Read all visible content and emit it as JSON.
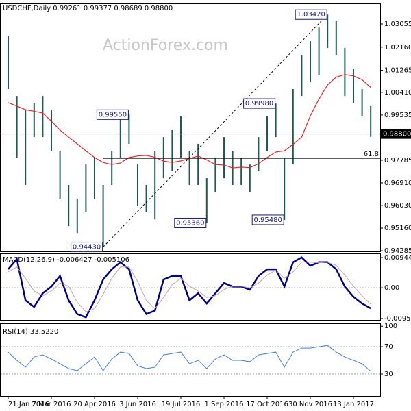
{
  "chart_data": [
    {
      "type": "hilo",
      "title": "USDCHF,Daily 0.99261 0.99377 0.98689 0.98800",
      "watermark": "ActionForex.com",
      "categories": [
        "21 Jan 2016",
        null,
        null,
        null,
        null,
        "7 Mar 2016",
        null,
        null,
        null,
        null,
        "20 Apr 2016",
        null,
        null,
        null,
        null,
        "3 Jun 2016",
        null,
        null,
        null,
        null,
        "19 Jul 2016",
        null,
        null,
        null,
        null,
        "1 Sep 2016",
        null,
        null,
        null,
        null,
        "17 Oct 2016",
        null,
        null,
        null,
        null,
        "30 Nov 2016",
        null,
        null,
        null,
        null,
        "13 Jan 2017",
        null,
        null
      ],
      "high": [
        1.026,
        1.0027,
        0.9974,
        1.0001,
        1.0027,
        0.9974,
        0.9815,
        0.9683,
        0.963,
        0.9762,
        0.9789,
        0.9683,
        0.9815,
        0.9948,
        0.9955,
        0.9762,
        0.9683,
        0.9815,
        0.9868,
        0.9895,
        0.9948,
        0.9815,
        0.9842,
        0.9709,
        0.9789,
        0.9868,
        0.9815,
        0.9789,
        0.9762,
        0.9868,
        0.9948,
        0.9998,
        0.9789,
        1.0054,
        1.0186,
        1.0239,
        1.0292,
        1.0342,
        1.0319,
        1.0213,
        1.0133,
        1.0054,
        0.9988
      ],
      "low": [
        1.0054,
        0.9789,
        0.9683,
        0.9868,
        0.9868,
        0.9815,
        0.963,
        0.9524,
        0.9497,
        0.9577,
        0.963,
        0.9443,
        0.9683,
        0.9789,
        0.9842,
        0.9603,
        0.9577,
        0.955,
        0.9709,
        0.9736,
        0.9789,
        0.9683,
        0.9683,
        0.9536,
        0.9656,
        0.9709,
        0.9683,
        0.9683,
        0.9656,
        0.9736,
        0.9815,
        0.9868,
        0.9548,
        0.9762,
        1.0027,
        1.008,
        1.0107,
        1.0213,
        1.0186,
        1.0027,
        1.0001,
        0.9948,
        0.9869
      ],
      "color": "#1e5b4f",
      "ma_values": [
        1.0001,
        0.9988,
        0.9974,
        0.9968,
        0.9961,
        0.993,
        0.9895,
        0.9868,
        0.9842,
        0.9815,
        0.9789,
        0.977,
        0.9762,
        0.9768,
        0.9789,
        0.9795,
        0.9797,
        0.979,
        0.9775,
        0.977,
        0.9776,
        0.9785,
        0.9795,
        0.978,
        0.9762,
        0.976,
        0.9749,
        0.9752,
        0.975,
        0.9765,
        0.9789,
        0.981,
        0.9815,
        0.984,
        0.9868,
        0.995,
        1.0015,
        1.007,
        1.01,
        1.011,
        1.0105,
        1.009,
        1.006
      ],
      "ma_color": "#e8212a",
      "annotations": [
        {
          "value": 0.9955,
          "label": "0.99550"
        },
        {
          "value": 0.9998,
          "label": "0.99980"
        },
        {
          "value": 1.0342,
          "label": "1.03420"
        },
        {
          "value": 0.9443,
          "label": "0.94430"
        },
        {
          "value": 0.9536,
          "label": "0.95360"
        },
        {
          "value": 0.9548,
          "label": "0.95480"
        }
      ],
      "fib": {
        "value": 0.9786,
        "label": "61.8"
      },
      "last": {
        "value": 0.988,
        "label": "0.98800"
      },
      "ylim": [
        0.9426,
        1.0385
      ],
      "yticks": [
        1.03055,
        {
          "value": 1.0216,
          "label": "1.02160"
        },
        1.01265,
        {
          "value": 1.0041,
          "label": "1.00410"
        },
        0.99535,
        0.97785,
        {
          "value": 0.9691,
          "label": "0.96910"
        },
        {
          "value": 0.9603,
          "label": "0.96030"
        },
        {
          "value": 0.9516,
          "label": "0.95160"
        },
        0.94285
      ]
    },
    {
      "type": "line",
      "title": "MACD(12,26,9) -0.006427 -0.005106",
      "series": [
        {
          "color": "#00008b",
          "values": [
            0.0058,
            0.009,
            -0.0039,
            -0.006,
            -0.0017,
            0.0004,
            0.0037,
            -0.0039,
            -0.0082,
            -0.0092,
            -0.0039,
            0.0026,
            0.0058,
            0.008,
            0.0058,
            -0.0039,
            -0.0082,
            -0.0071,
            0.0026,
            0.0037,
            0.0037,
            -0.0039,
            -0.0017,
            -0.0049,
            -0.0017,
            0.0015,
            0.0004,
            0.0004,
            -0.0006,
            0.0037,
            0.0058,
            0.0058,
            0.0004,
            0.008,
            0.0095,
            0.0069,
            0.008,
            0.008,
            0.0058,
            0.0004,
            -0.0028,
            -0.0049,
            -0.0064
          ]
        },
        {
          "color": "#c8a0a0",
          "values": [
            0.005,
            0.0065,
            0.003,
            -0.001,
            -0.0025,
            -0.001,
            0.0015,
            0.0005,
            -0.0045,
            -0.0075,
            -0.0065,
            -0.002,
            0.003,
            0.0065,
            0.0065,
            0.002,
            -0.004,
            -0.0065,
            -0.003,
            0.001,
            0.003,
            0.0005,
            -0.001,
            -0.003,
            -0.0025,
            -0.0005,
            0.0005,
            0.0005,
            0.0,
            0.0015,
            0.004,
            0.0055,
            0.003,
            0.005,
            0.008,
            0.008,
            0.0078,
            0.008,
            0.007,
            0.004,
            0.0005,
            -0.0025,
            -0.0051
          ]
        }
      ],
      "ylim": [
        -0.01002,
        0.01074
      ],
      "yticks": [
        0.009446,
        {
          "value": 0,
          "label": "0.00"
        },
        -0.009588
      ]
    },
    {
      "type": "line",
      "title": "RSI(14) 33.5220",
      "series": [
        {
          "color": "#3d7fe0",
          "values": [
            62,
            50,
            40,
            55,
            58,
            52,
            45,
            38,
            35,
            45,
            55,
            35,
            52,
            62,
            60,
            42,
            38,
            40,
            58,
            60,
            62,
            45,
            50,
            38,
            52,
            58,
            50,
            50,
            48,
            58,
            60,
            62,
            40,
            62,
            68,
            68,
            70,
            72,
            62,
            55,
            50,
            45,
            34
          ]
        }
      ],
      "ylim": [
        -2.1,
        104.2
      ],
      "yticks": [
        100,
        70,
        30
      ]
    }
  ]
}
